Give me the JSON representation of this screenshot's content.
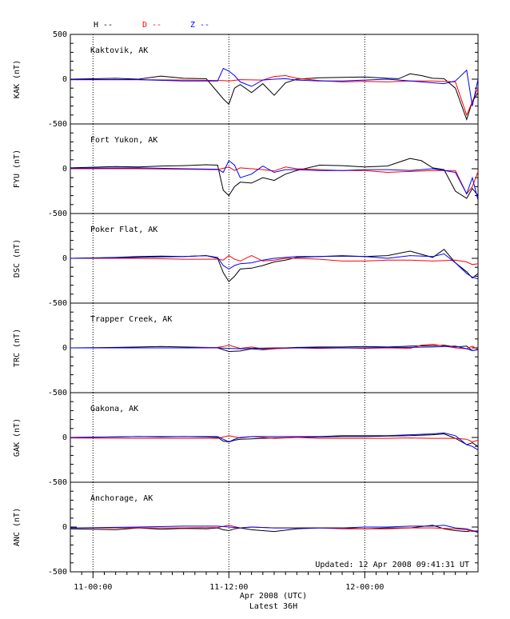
{
  "legend": [
    {
      "label": "H --",
      "color": "#000000"
    },
    {
      "label": "D --",
      "color": "#ff0000"
    },
    {
      "label": "Z --",
      "color": "#0000ff"
    }
  ],
  "updated_text": "Updated: 12 Apr 2008 09:41:31 UT",
  "xaxis": {
    "ticks": [
      "11-00:00",
      "11-12:00",
      "12-00:00"
    ],
    "label_line1": "Apr 2008 (UTC)",
    "label_line2": "Latest 36H"
  },
  "chart_data": {
    "type": "line",
    "x_unit": "hours since 2008-04-11 00:00 UTC",
    "x_range": [
      -2,
      34
    ],
    "ylim": [
      -500,
      500
    ],
    "ytick_labels": [
      "500",
      "0",
      "-500"
    ],
    "grid": "dotted vertical lines at tick marks",
    "panels": [
      {
        "station": "Kaktovik, AK",
        "ylabel": "KAK (nT)",
        "series": [
          {
            "name": "H",
            "color": "#000000",
            "x": [
              -2,
              2,
              4,
              6,
              8,
              10,
              11.5,
              12,
              12.5,
              13,
              14,
              15,
              16,
              17,
              18,
              20,
              22,
              24,
              26,
              27,
              28,
              29,
              30,
              31,
              32,
              33,
              33.5,
              34
            ],
            "y": [
              0,
              10,
              0,
              35,
              10,
              5,
              -220,
              -280,
              -100,
              -60,
              -150,
              -50,
              -180,
              -40,
              0,
              15,
              20,
              25,
              10,
              5,
              60,
              40,
              10,
              5,
              -100,
              -450,
              -250,
              -150
            ]
          },
          {
            "name": "D",
            "color": "#ff0000",
            "x": [
              -2,
              4,
              8,
              11.5,
              12,
              13,
              15,
              16,
              17,
              18,
              20,
              22,
              24,
              26,
              28,
              30,
              32,
              33,
              33.5,
              34
            ],
            "y": [
              -5,
              -5,
              -10,
              -15,
              -20,
              -5,
              -10,
              30,
              40,
              10,
              -15,
              -30,
              -25,
              -30,
              -20,
              -20,
              -30,
              -400,
              -250,
              -100
            ]
          },
          {
            "name": "Z",
            "color": "#0000ff",
            "x": [
              -2,
              4,
              8,
              11,
              11.5,
              12,
              12.5,
              13,
              14,
              15,
              16,
              17,
              18,
              20,
              22,
              24,
              26,
              28,
              30,
              31,
              32,
              33,
              33.5,
              34
            ],
            "y": [
              -5,
              -5,
              -20,
              -20,
              120,
              90,
              40,
              -30,
              -80,
              -10,
              0,
              5,
              -10,
              -20,
              -20,
              -10,
              0,
              -20,
              -40,
              -50,
              -20,
              100,
              -300,
              0
            ]
          }
        ]
      },
      {
        "station": "Fort Yukon, AK",
        "ylabel": "FYU (nT)",
        "series": [
          {
            "name": "H",
            "color": "#000000",
            "x": [
              -2,
              2,
              4,
              6,
              8,
              10,
              11,
              11.5,
              12,
              12.5,
              13,
              14,
              15,
              16,
              17,
              18,
              20,
              22,
              24,
              26,
              28,
              29,
              30,
              31,
              32,
              33,
              33.5,
              34
            ],
            "y": [
              10,
              25,
              20,
              30,
              35,
              45,
              40,
              -240,
              -300,
              -200,
              -150,
              -160,
              -100,
              -130,
              -60,
              -20,
              40,
              35,
              20,
              30,
              115,
              90,
              10,
              -10,
              -250,
              -330,
              -220,
              -300
            ]
          },
          {
            "name": "D",
            "color": "#ff0000",
            "x": [
              -2,
              4,
              8,
              11,
              12,
              12.5,
              13,
              15,
              16,
              17,
              18,
              20,
              22,
              24,
              26,
              28,
              30,
              32,
              33,
              33.5,
              34
            ],
            "y": [
              0,
              0,
              -5,
              -10,
              20,
              -20,
              10,
              -10,
              -25,
              20,
              0,
              -10,
              -20,
              -20,
              -40,
              -30,
              -20,
              -20,
              -280,
              -200,
              -30
            ]
          },
          {
            "name": "Z",
            "color": "#0000ff",
            "x": [
              -2,
              4,
              8,
              11,
              11.5,
              12,
              12.5,
              13,
              14,
              15,
              16,
              17,
              18,
              20,
              22,
              24,
              26,
              28,
              30,
              32,
              33,
              33.5,
              34
            ],
            "y": [
              5,
              10,
              0,
              -5,
              -40,
              90,
              40,
              -100,
              -60,
              30,
              -40,
              -10,
              -10,
              -20,
              -20,
              -10,
              -10,
              -20,
              0,
              -40,
              -280,
              -100,
              -350
            ]
          }
        ]
      },
      {
        "station": "Poker Flat, AK",
        "ylabel": "DSC (nT)",
        "series": [
          {
            "name": "H",
            "color": "#000000",
            "x": [
              -2,
              2,
              4,
              6,
              8,
              10,
              11,
              11.5,
              12,
              12.5,
              13,
              14,
              15,
              16,
              17,
              18,
              20,
              22,
              24,
              26,
              28,
              30,
              31,
              32,
              33,
              33.5,
              34
            ],
            "y": [
              0,
              10,
              20,
              25,
              20,
              30,
              0,
              -160,
              -260,
              -200,
              -120,
              -110,
              -80,
              -40,
              -20,
              10,
              20,
              25,
              20,
              30,
              80,
              10,
              100,
              -50,
              -150,
              -220,
              -170
            ]
          },
          {
            "name": "D",
            "color": "#ff0000",
            "x": [
              -2,
              4,
              8,
              11,
              11.5,
              12,
              12.5,
              13,
              14,
              15,
              16,
              17,
              18,
              20,
              22,
              24,
              26,
              28,
              30,
              32,
              33,
              33.5,
              34
            ],
            "y": [
              0,
              0,
              -10,
              -10,
              -20,
              30,
              -10,
              -30,
              30,
              -30,
              -20,
              0,
              0,
              -10,
              -30,
              -30,
              -20,
              -20,
              -30,
              -20,
              -40,
              -70,
              -60
            ]
          },
          {
            "name": "Z",
            "color": "#0000ff",
            "x": [
              -2,
              4,
              8,
              10,
              11,
              11.5,
              12,
              12.5,
              13,
              14,
              15,
              16,
              17,
              18,
              20,
              22,
              24,
              26,
              28,
              30,
              31,
              32,
              33,
              33.5,
              34
            ],
            "y": [
              0,
              10,
              20,
              30,
              10,
              -80,
              -120,
              -80,
              -60,
              -50,
              -20,
              0,
              10,
              20,
              20,
              30,
              20,
              0,
              30,
              20,
              50,
              -50,
              -170,
              -210,
              -230
            ]
          }
        ]
      },
      {
        "station": "Trapper Creek, AK",
        "ylabel": "TRC (nT)",
        "series": [
          {
            "name": "H",
            "color": "#000000",
            "x": [
              -2,
              2,
              4,
              6,
              8,
              10,
              11,
              12,
              13,
              14,
              15,
              16,
              17,
              18,
              20,
              22,
              24,
              26,
              28,
              30,
              31,
              32,
              33,
              33.5,
              34
            ],
            "y": [
              0,
              5,
              10,
              15,
              10,
              5,
              0,
              -40,
              -35,
              -10,
              -20,
              -10,
              0,
              5,
              10,
              10,
              15,
              10,
              20,
              25,
              30,
              10,
              20,
              -30,
              -20
            ]
          },
          {
            "name": "D",
            "color": "#ff0000",
            "x": [
              -2,
              4,
              8,
              11,
              11.5,
              12,
              13,
              14,
              15,
              16,
              18,
              20,
              22,
              24,
              26,
              28,
              29,
              30,
              32,
              33,
              33.5,
              34
            ],
            "y": [
              0,
              0,
              0,
              5,
              15,
              30,
              -5,
              10,
              -10,
              -10,
              0,
              -5,
              0,
              -5,
              0,
              -5,
              30,
              40,
              0,
              -10,
              20,
              -20
            ]
          },
          {
            "name": "Z",
            "color": "#0000ff",
            "x": [
              -2,
              4,
              8,
              11,
              12,
              13,
              14,
              16,
              18,
              20,
              22,
              24,
              26,
              28,
              30,
              32,
              33,
              33.5,
              34
            ],
            "y": [
              0,
              0,
              0,
              0,
              -5,
              -10,
              -5,
              0,
              0,
              0,
              0,
              0,
              5,
              5,
              10,
              20,
              -10,
              -30,
              -20
            ]
          }
        ]
      },
      {
        "station": "Gakona, AK",
        "ylabel": "GAK (nT)",
        "series": [
          {
            "name": "H",
            "color": "#000000",
            "x": [
              -2,
              2,
              4,
              6,
              8,
              10,
              11,
              11.5,
              12,
              12.5,
              13,
              14,
              15,
              16,
              18,
              20,
              22,
              24,
              26,
              28,
              30,
              31,
              32,
              33,
              33.5,
              34
            ],
            "y": [
              0,
              5,
              10,
              5,
              10,
              5,
              0,
              -40,
              -50,
              -30,
              -20,
              -15,
              -10,
              -5,
              0,
              5,
              10,
              10,
              15,
              20,
              30,
              40,
              -10,
              -80,
              -60,
              -100
            ]
          },
          {
            "name": "D",
            "color": "#ff0000",
            "x": [
              -2,
              4,
              8,
              11,
              12,
              13,
              14,
              16,
              18,
              20,
              22,
              24,
              26,
              28,
              30,
              32,
              33,
              33.5,
              34
            ],
            "y": [
              -5,
              -10,
              -10,
              -10,
              20,
              -5,
              10,
              -10,
              0,
              -10,
              -10,
              -10,
              -10,
              -5,
              -10,
              -10,
              -20,
              -50,
              -30
            ]
          },
          {
            "name": "Z",
            "color": "#0000ff",
            "x": [
              -2,
              4,
              8,
              11,
              11.5,
              12,
              12.5,
              13,
              14,
              16,
              18,
              20,
              22,
              24,
              26,
              28,
              30,
              31,
              32,
              33,
              33.5,
              34
            ],
            "y": [
              0,
              10,
              10,
              10,
              -20,
              -50,
              -20,
              0,
              10,
              10,
              10,
              10,
              20,
              20,
              20,
              30,
              40,
              50,
              20,
              -80,
              -100,
              -140
            ]
          }
        ]
      },
      {
        "station": "Anchorage, AK",
        "ylabel": "ANC (nT)",
        "series": [
          {
            "name": "H",
            "color": "#000000",
            "x": [
              -2,
              2,
              4,
              6,
              8,
              10,
              11,
              11.5,
              12,
              12.5,
              13,
              14,
              15,
              16,
              18,
              20,
              22,
              24,
              26,
              28,
              30,
              31,
              32,
              33,
              33.5,
              34
            ],
            "y": [
              -20,
              -30,
              -10,
              -25,
              -15,
              -20,
              -10,
              -30,
              -40,
              -20,
              -10,
              -30,
              -40,
              -50,
              -20,
              -10,
              -10,
              -20,
              -10,
              -10,
              20,
              -20,
              -40,
              -50,
              -40,
              -60
            ]
          },
          {
            "name": "D",
            "color": "#ff0000",
            "x": [
              -2,
              4,
              8,
              11,
              12,
              13,
              14,
              16,
              18,
              20,
              22,
              24,
              26,
              28,
              30,
              32,
              33,
              33.5,
              34
            ],
            "y": [
              -10,
              -10,
              -10,
              -5,
              20,
              -10,
              0,
              -10,
              -10,
              -10,
              -20,
              -20,
              -20,
              -10,
              -10,
              -20,
              -30,
              -50,
              -40
            ]
          },
          {
            "name": "Z",
            "color": "#0000ff",
            "x": [
              -2,
              4,
              8,
              11,
              12,
              13,
              14,
              16,
              18,
              20,
              22,
              24,
              26,
              28,
              30,
              31,
              32,
              33,
              33.5,
              34
            ],
            "y": [
              -10,
              0,
              10,
              10,
              0,
              -10,
              0,
              -10,
              -10,
              -10,
              -10,
              0,
              0,
              10,
              10,
              20,
              -10,
              -20,
              -40,
              -50
            ]
          }
        ]
      }
    ]
  }
}
